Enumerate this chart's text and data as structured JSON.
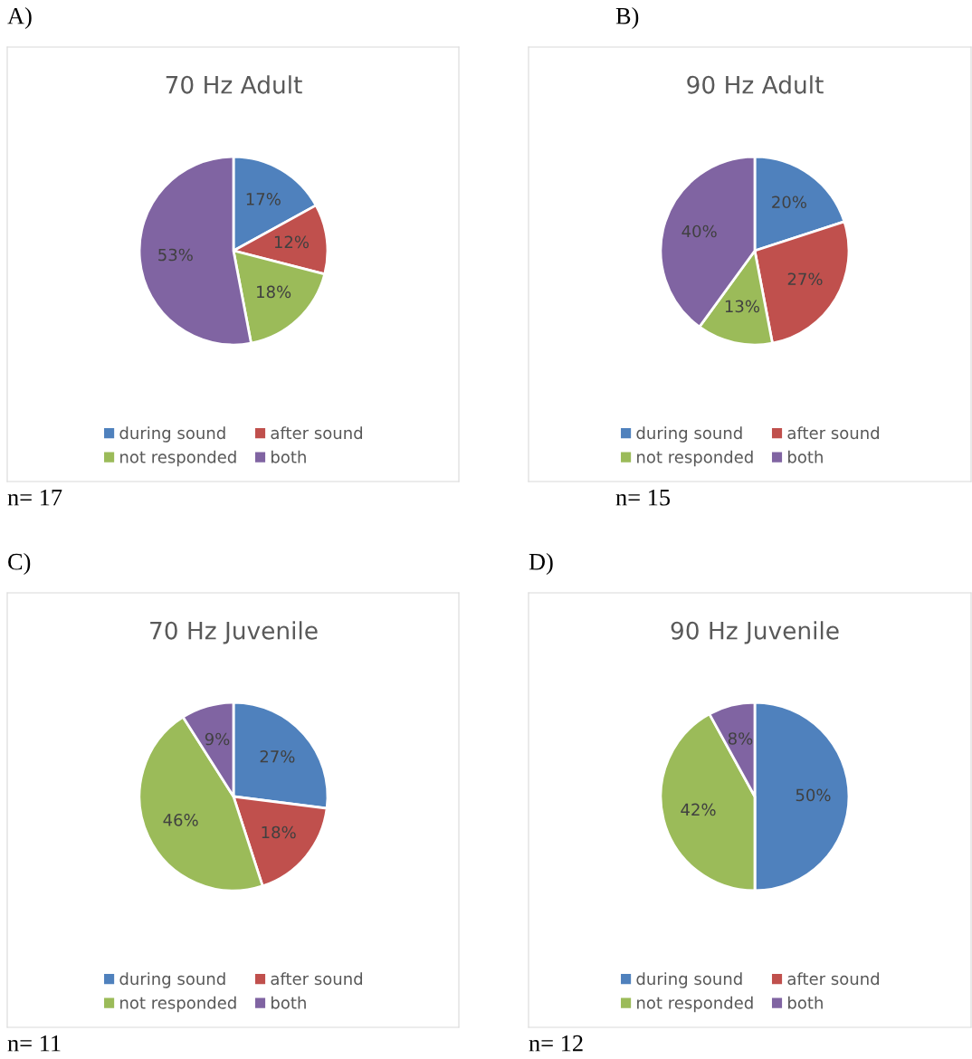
{
  "chart_data": [
    {
      "type": "pie",
      "title": "70 Hz Adult",
      "categories": [
        "during sound",
        "after sound",
        "not responded",
        "both"
      ],
      "values": [
        17,
        12,
        18,
        53
      ],
      "colors": [
        "#4f81bd",
        "#c0504d",
        "#9bbb59",
        "#8064a2"
      ],
      "value_labels": [
        "17%",
        "12%",
        "18%",
        "53%"
      ],
      "legend": "bottom",
      "annotations": [
        "A)",
        "n= 17"
      ]
    },
    {
      "type": "pie",
      "title": "90 Hz Adult",
      "categories": [
        "during sound",
        "after sound",
        "not responded",
        "both"
      ],
      "values": [
        20,
        27,
        13,
        40
      ],
      "colors": [
        "#4f81bd",
        "#c0504d",
        "#9bbb59",
        "#8064a2"
      ],
      "value_labels": [
        "20%",
        "27%",
        "13%",
        "40%"
      ],
      "legend": "bottom",
      "annotations": [
        "B)",
        "n= 15"
      ]
    },
    {
      "type": "pie",
      "title": "70 Hz Juvenile",
      "categories": [
        "during sound",
        "after sound",
        "not responded",
        "both"
      ],
      "values": [
        27,
        18,
        46,
        9
      ],
      "colors": [
        "#4f81bd",
        "#c0504d",
        "#9bbb59",
        "#8064a2"
      ],
      "value_labels": [
        "27%",
        "18%",
        "46%",
        "9%"
      ],
      "legend": "bottom",
      "annotations": [
        "C)",
        "n= 11"
      ]
    },
    {
      "type": "pie",
      "title": "90 Hz Juvenile",
      "categories": [
        "during sound",
        "after sound",
        "not responded",
        "both"
      ],
      "values": [
        50,
        0,
        42,
        8
      ],
      "colors": [
        "#4f81bd",
        "#c0504d",
        "#9bbb59",
        "#8064a2"
      ],
      "value_labels": [
        "50%",
        null,
        "42%",
        "8%"
      ],
      "legend": "bottom",
      "annotations": [
        "D)",
        "n= 12"
      ]
    }
  ]
}
